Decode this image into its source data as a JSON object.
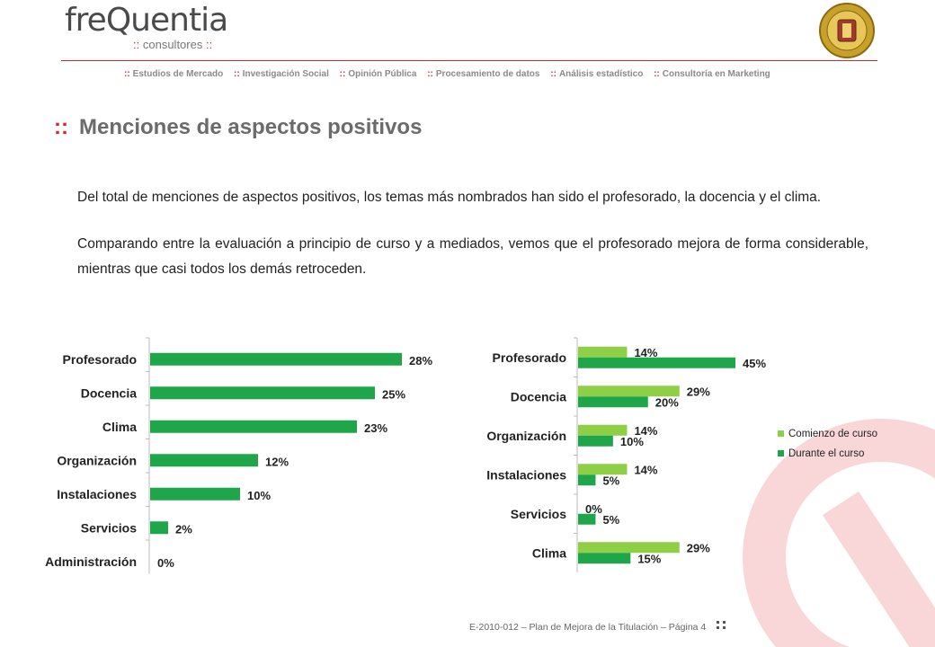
{
  "header": {
    "logo_main": "freQuentia",
    "logo_sub": "consultores",
    "nav": [
      "Estudios de Mercado",
      "Investigación Social",
      "Opinión Pública",
      "Procesamiento de datos",
      "Análisis estadístico",
      "Consultoría en Marketing"
    ],
    "separator": "::"
  },
  "title": "Menciones de aspectos positivos",
  "paragraphs": [
    "Del total de menciones de aspectos positivos, los temas más nombrados han sido el profesorado, la docencia y el clima.",
    "Comparando entre la evaluación a principio de curso y a mediados, vemos que el profesorado mejora de forma considerable, mientras que casi todos los demás retroceden."
  ],
  "footer": "E-2010-012 – Plan de Mejora de la Titulación – Página 4",
  "colors": {
    "accent": "#d9262b",
    "bar_dark": "#1fa64b",
    "bar_light": "#8fcf45"
  },
  "chart_data": [
    {
      "type": "bar",
      "orientation": "horizontal",
      "categories": [
        "Profesorado",
        "Docencia",
        "Clima",
        "Organización",
        "Instalaciones",
        "Servicios",
        "Administración"
      ],
      "values": [
        28,
        25,
        23,
        12,
        10,
        2,
        0
      ],
      "value_labels": [
        "28%",
        "25%",
        "23%",
        "12%",
        "10%",
        "2%",
        "0%"
      ],
      "unit": "%",
      "xlim": [
        0,
        30
      ],
      "grid": false
    },
    {
      "type": "bar",
      "orientation": "horizontal",
      "categories": [
        "Profesorado",
        "Docencia",
        "Organización",
        "Instalaciones",
        "Servicios",
        "Clima"
      ],
      "series": [
        {
          "name": "Comienzo de curso",
          "values": [
            14,
            29,
            14,
            14,
            0,
            29
          ],
          "labels": [
            "14%",
            "29%",
            "14%",
            "14%",
            "0%",
            "29%"
          ]
        },
        {
          "name": "Durante el curso",
          "values": [
            45,
            20,
            10,
            5,
            5,
            15
          ],
          "labels": [
            "45%",
            "20%",
            "10%",
            "5%",
            "5%",
            "15%"
          ]
        }
      ],
      "unit": "%",
      "xlim": [
        0,
        50
      ],
      "legend": "right",
      "grid": false
    }
  ]
}
